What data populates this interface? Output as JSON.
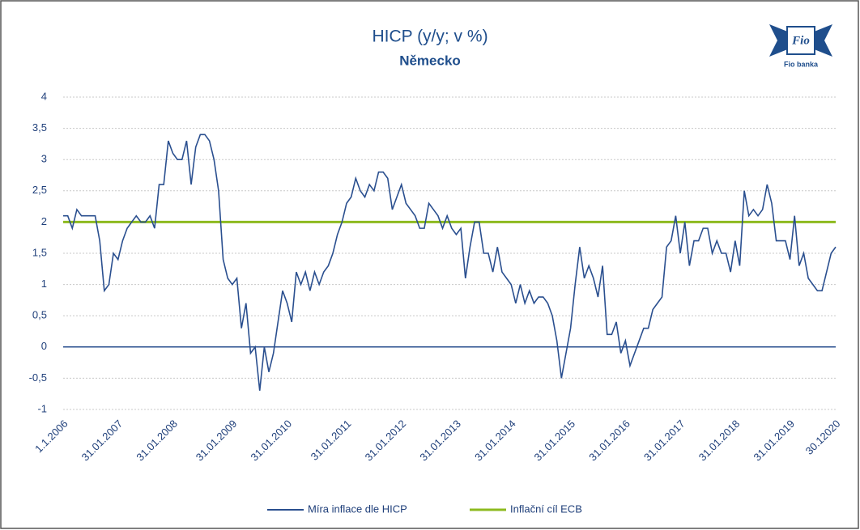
{
  "chart_data": {
    "type": "line",
    "title": "HICP (y/y; v %)",
    "subtitle": "Německo",
    "logo": {
      "mark": "Fio",
      "name": "Fio banka"
    },
    "categories": [
      "1.1.2006",
      null,
      null,
      null,
      null,
      null,
      null,
      null,
      null,
      null,
      null,
      null,
      "31.01.2007",
      null,
      null,
      null,
      null,
      null,
      null,
      null,
      null,
      null,
      null,
      null,
      "31.01.2008",
      null,
      null,
      null,
      null,
      null,
      null,
      null,
      null,
      null,
      null,
      null,
      null,
      "31.01.2009",
      null,
      null,
      null,
      null,
      null,
      null,
      null,
      null,
      null,
      null,
      null,
      "31.01.2010",
      null,
      null,
      null,
      null,
      null,
      null,
      null,
      null,
      null,
      null,
      null,
      null,
      "31.01.2011",
      null,
      null,
      null,
      null,
      null,
      null,
      null,
      null,
      null,
      null,
      null,
      "31.01.2012",
      null,
      null,
      null,
      null,
      null,
      null,
      null,
      null,
      null,
      null,
      null,
      "31.01.2013",
      null,
      null,
      null,
      null,
      null,
      null,
      null,
      null,
      null,
      null,
      null,
      "31.01.2014",
      null,
      null,
      null,
      null,
      null,
      null,
      null,
      null,
      null,
      null,
      null,
      null,
      "31.01.2015",
      null,
      null,
      null,
      null,
      null,
      null,
      null,
      null,
      null,
      null,
      null,
      "31.01.2016",
      null,
      null,
      null,
      null,
      null,
      null,
      null,
      null,
      null,
      null,
      null,
      "31.01.2017",
      null,
      null,
      null,
      null,
      null,
      null,
      null,
      null,
      null,
      null,
      null,
      "31.01.2018",
      null,
      null,
      null,
      null,
      null,
      null,
      null,
      null,
      null,
      null,
      null,
      "31.01.2019",
      null,
      null,
      null,
      null,
      null,
      null,
      null,
      null,
      null,
      "30.12020"
    ],
    "series": [
      {
        "name": "Míra inflace dle HICP",
        "color": "#2a4f8f",
        "values": [
          2.1,
          2.1,
          1.9,
          2.2,
          2.1,
          2.1,
          2.1,
          2.1,
          1.7,
          0.9,
          1.0,
          1.5,
          1.4,
          1.7,
          1.9,
          2.0,
          2.1,
          2.0,
          2.0,
          2.1,
          1.9,
          2.6,
          2.6,
          3.3,
          3.1,
          3.0,
          3.0,
          3.3,
          2.6,
          3.2,
          3.4,
          3.4,
          3.3,
          3.0,
          2.5,
          1.4,
          1.1,
          1.0,
          1.1,
          0.3,
          0.7,
          -0.1,
          0.0,
          -0.7,
          0.0,
          -0.4,
          -0.1,
          0.4,
          0.9,
          0.7,
          0.4,
          1.2,
          1.0,
          1.2,
          0.9,
          1.2,
          1.0,
          1.2,
          1.3,
          1.5,
          1.8,
          2.0,
          2.3,
          2.4,
          2.7,
          2.5,
          2.4,
          2.6,
          2.5,
          2.8,
          2.8,
          2.7,
          2.2,
          2.4,
          2.6,
          2.3,
          2.2,
          2.1,
          1.9,
          1.9,
          2.3,
          2.2,
          2.1,
          1.9,
          2.1,
          1.9,
          1.8,
          1.9,
          1.1,
          1.6,
          2.0,
          2.0,
          1.5,
          1.5,
          1.2,
          1.6,
          1.2,
          1.1,
          1.0,
          0.7,
          1.0,
          0.7,
          0.9,
          0.7,
          0.8,
          0.8,
          0.7,
          0.5,
          0.1,
          -0.5,
          -0.1,
          0.3,
          1.0,
          1.6,
          1.1,
          1.3,
          1.1,
          0.8,
          1.3,
          0.2,
          0.2,
          0.4,
          -0.1,
          0.1,
          -0.3,
          -0.1,
          0.1,
          0.3,
          0.3,
          0.6,
          0.7,
          0.8,
          1.6,
          1.7,
          2.1,
          1.5,
          2.0,
          1.3,
          1.7,
          1.7,
          1.9,
          1.9,
          1.5,
          1.7,
          1.5,
          1.5,
          1.2,
          1.7,
          1.3,
          2.5,
          2.1,
          2.2,
          2.1,
          2.2,
          2.6,
          2.3,
          1.7,
          1.7,
          1.7,
          1.4,
          2.1,
          1.3,
          1.5,
          1.1,
          1.0,
          0.9,
          0.9,
          1.2,
          1.5,
          1.6
        ]
      },
      {
        "name": "Inflační cíl ECB",
        "color": "#8dba1f",
        "values": [
          2,
          2,
          2,
          2,
          2,
          2,
          2,
          2,
          2,
          2,
          2,
          2,
          2,
          2,
          2,
          2,
          2,
          2,
          2,
          2,
          2,
          2,
          2,
          2,
          2,
          2,
          2,
          2,
          2,
          2,
          2,
          2,
          2,
          2,
          2,
          2,
          2,
          2,
          2,
          2,
          2,
          2,
          2,
          2,
          2,
          2,
          2,
          2,
          2,
          2,
          2,
          2,
          2,
          2,
          2,
          2,
          2,
          2,
          2,
          2,
          2,
          2,
          2,
          2,
          2,
          2,
          2,
          2,
          2,
          2,
          2,
          2,
          2,
          2,
          2,
          2,
          2,
          2,
          2,
          2,
          2,
          2,
          2,
          2,
          2,
          2,
          2,
          2,
          2,
          2,
          2,
          2,
          2,
          2,
          2,
          2,
          2,
          2,
          2,
          2,
          2,
          2,
          2,
          2,
          2,
          2,
          2,
          2,
          2,
          2,
          2,
          2,
          2,
          2,
          2,
          2,
          2,
          2,
          2,
          2,
          2,
          2,
          2,
          2,
          2,
          2,
          2,
          2,
          2,
          2,
          2,
          2,
          2,
          2,
          2,
          2,
          2,
          2,
          2,
          2,
          2,
          2,
          2,
          2,
          2,
          2,
          2,
          2,
          2,
          2,
          2,
          2,
          2,
          2,
          2,
          2,
          2,
          2,
          2,
          2,
          2,
          2,
          2,
          2,
          2,
          2,
          2,
          2,
          2,
          2
        ]
      }
    ],
    "ylim": [
      -1,
      4
    ],
    "yticks": [
      -1,
      {
        "value": -0.5,
        "label": "-0,5"
      },
      0,
      {
        "value": 0.5,
        "label": "0,5"
      },
      1,
      {
        "value": 1.5,
        "label": "1,5"
      },
      2,
      {
        "value": 2.5,
        "label": "2,5"
      },
      3,
      {
        "value": 3.5,
        "label": "3,5"
      },
      4
    ],
    "grid": true
  }
}
